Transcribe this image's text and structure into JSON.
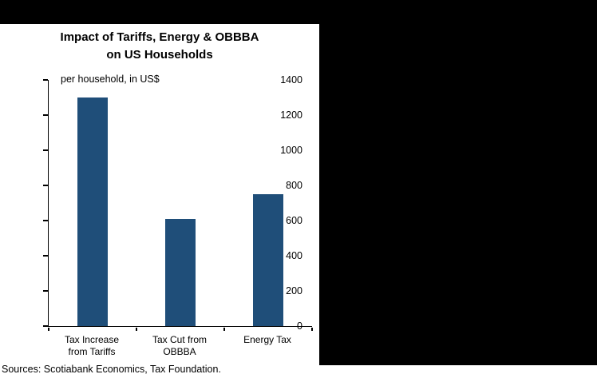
{
  "chart_data": {
    "type": "bar",
    "title": "Impact of Tariffs, Energy & OBBBA on US Households",
    "title_lines": [
      "Impact of Tariffs, Energy & OBBBA",
      "on US Households"
    ],
    "subtitle": "per household, in US$",
    "categories": [
      "Tax Increase from Tariffs",
      "Tax Cut from OBBBA",
      "Energy Tax"
    ],
    "category_lines": [
      [
        "Tax Increase",
        "from Tariffs"
      ],
      [
        "Tax Cut from",
        "OBBBA"
      ],
      [
        "Energy Tax"
      ]
    ],
    "values": [
      1300,
      610,
      750
    ],
    "ylim": [
      0,
      1400
    ],
    "ytick_step": 200,
    "xlabel": "",
    "ylabel": "",
    "grid": "off",
    "legend": "none",
    "bar_color": "#1f4e79",
    "source": "Sources: Scotiabank Economics, Tax Foundation."
  },
  "layout_colors": {
    "background": "#000000",
    "panel": "#ffffff"
  }
}
